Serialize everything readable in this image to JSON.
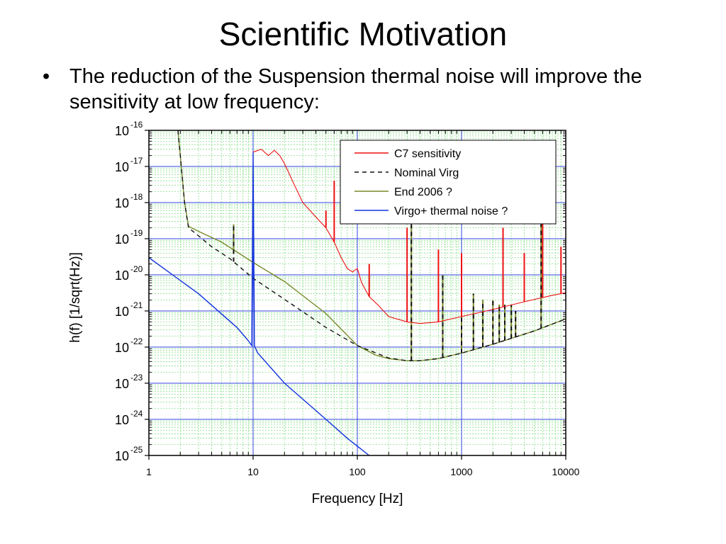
{
  "slide": {
    "title": "Scientific Motivation",
    "bullet_glyph": "•",
    "bullet_text": "The reduction of the Suspension thermal noise will improve the sensitivity at low frequency:"
  },
  "chart_data": {
    "type": "line",
    "xscale": "log",
    "yscale": "log",
    "xlim": [
      1,
      10000
    ],
    "ylim": [
      1e-25,
      1e-16
    ],
    "xlabel": "Frequency [Hz]",
    "ylabel": "h(f) [1/sqrt(Hz)]",
    "xticks": [
      "1",
      "10",
      "100",
      "1000",
      "10000"
    ],
    "yticks": [
      {
        "base": "10",
        "exp": "-16"
      },
      {
        "base": "10",
        "exp": "-17"
      },
      {
        "base": "10",
        "exp": "-18"
      },
      {
        "base": "10",
        "exp": "-19"
      },
      {
        "base": "10",
        "exp": "-20"
      },
      {
        "base": "10",
        "exp": "-21"
      },
      {
        "base": "10",
        "exp": "-22"
      },
      {
        "base": "10",
        "exp": "-23"
      },
      {
        "base": "10",
        "exp": "-24"
      },
      {
        "base": "10",
        "exp": "-25"
      }
    ],
    "grid": true,
    "legend_position": "top-right",
    "colors": {
      "major_grid": "#3344dd",
      "minor_grid": "#88dd88"
    },
    "series": [
      {
        "name": "C7 sensitivity",
        "color": "#ee1111",
        "style": "solid",
        "points": [
          [
            10,
            2.5e-17
          ],
          [
            12,
            3e-17
          ],
          [
            14,
            2e-17
          ],
          [
            16,
            2.8e-17
          ],
          [
            18,
            2e-17
          ],
          [
            20,
            1.2e-17
          ],
          [
            25,
            3e-18
          ],
          [
            30,
            1e-18
          ],
          [
            40,
            4e-19
          ],
          [
            50,
            2e-19
          ],
          [
            60,
            8e-20
          ],
          [
            70,
            3e-20
          ],
          [
            80,
            1.5e-20
          ],
          [
            90,
            1.2e-20
          ],
          [
            100,
            1.5e-20
          ],
          [
            110,
            6e-21
          ],
          [
            130,
            2.5e-21
          ],
          [
            160,
            1.4e-21
          ],
          [
            200,
            7e-22
          ],
          [
            300,
            5e-22
          ],
          [
            400,
            4.5e-22
          ],
          [
            600,
            5e-22
          ],
          [
            1000,
            7e-22
          ],
          [
            2000,
            1.1e-21
          ],
          [
            4000,
            1.8e-21
          ],
          [
            7000,
            2.6e-21
          ],
          [
            10000,
            3.2e-21
          ]
        ],
        "lines": [
          [
            50,
            6e-19
          ],
          [
            60,
            4e-18
          ],
          [
            130,
            2e-20
          ],
          [
            300,
            2e-19
          ],
          [
            600,
            5e-20
          ],
          [
            1000,
            4e-20
          ],
          [
            2500,
            2e-19
          ],
          [
            4000,
            4e-20
          ],
          [
            6000,
            3e-19
          ],
          [
            9000,
            6e-20
          ]
        ]
      },
      {
        "name": "Nominal Virg",
        "color": "#111111",
        "style": "dashed",
        "points": [
          [
            1.9,
            1e-16
          ],
          [
            2,
            2e-17
          ],
          [
            2.2,
            1e-18
          ],
          [
            2.4,
            2e-19
          ],
          [
            3,
            1.2e-19
          ],
          [
            4,
            6e-20
          ],
          [
            6,
            2.8e-20
          ],
          [
            10,
            8e-21
          ],
          [
            20,
            2.1e-21
          ],
          [
            50,
            3.5e-22
          ],
          [
            100,
            1.1e-22
          ],
          [
            200,
            5e-23
          ],
          [
            300,
            4.2e-23
          ],
          [
            400,
            4.2e-23
          ],
          [
            600,
            4.8e-23
          ],
          [
            1000,
            6.8e-23
          ],
          [
            2000,
            1.2e-22
          ],
          [
            5000,
            2.8e-22
          ],
          [
            10000,
            6e-22
          ]
        ],
        "lines": [
          [
            6.5,
            2.5e-19
          ],
          [
            330,
            2.5e-19
          ],
          [
            660,
            1e-20
          ],
          [
            1000,
            8e-21
          ],
          [
            1300,
            3e-21
          ],
          [
            1600,
            2e-21
          ],
          [
            2000,
            2e-21
          ],
          [
            2300,
            1.5e-21
          ],
          [
            2600,
            1.5e-21
          ],
          [
            3000,
            1.5e-21
          ],
          [
            3300,
            1e-21
          ],
          [
            5800,
            5e-19
          ]
        ]
      },
      {
        "name": "End 2006 ?",
        "color": "#7a8a2a",
        "style": "solid",
        "points": [
          [
            1.9,
            1e-16
          ],
          [
            2,
            2e-17
          ],
          [
            2.2,
            1e-18
          ],
          [
            2.4,
            2.2e-19
          ],
          [
            3,
            1.6e-19
          ],
          [
            5,
            8e-20
          ],
          [
            10,
            2.2e-20
          ],
          [
            20,
            6.5e-21
          ],
          [
            50,
            8.5e-22
          ],
          [
            100,
            1.1e-22
          ],
          [
            150,
            6e-23
          ],
          [
            200,
            4.8e-23
          ],
          [
            300,
            4.2e-23
          ],
          [
            400,
            4.2e-23
          ],
          [
            600,
            4.8e-23
          ],
          [
            1000,
            6.8e-23
          ],
          [
            2000,
            1.2e-22
          ],
          [
            5000,
            2.8e-22
          ],
          [
            10000,
            6e-22
          ]
        ],
        "lines": [
          [
            6.5,
            2.5e-19
          ],
          [
            330,
            2.5e-19
          ],
          [
            660,
            1e-20
          ],
          [
            1000,
            8e-21
          ],
          [
            1300,
            3e-21
          ],
          [
            1600,
            2e-21
          ],
          [
            2000,
            2e-21
          ],
          [
            2300,
            1.5e-21
          ],
          [
            2600,
            1.5e-21
          ],
          [
            3000,
            1.5e-21
          ],
          [
            3300,
            1e-21
          ],
          [
            5800,
            5e-19
          ]
        ]
      },
      {
        "name": "Virgo+ thermal noise ?",
        "color": "#1133dd",
        "style": "solid",
        "points": [
          [
            1,
            3e-20
          ],
          [
            3,
            3e-21
          ],
          [
            7,
            3.5e-22
          ],
          [
            9,
            1.5e-22
          ],
          [
            9.7,
            1.1e-22
          ],
          [
            10,
            2.5e-17
          ],
          [
            10.3,
            1.1e-22
          ],
          [
            11,
            7e-23
          ],
          [
            20,
            1e-23
          ],
          [
            50,
            1e-24
          ],
          [
            80,
            3e-25
          ],
          [
            130,
            1e-25
          ]
        ],
        "lines": []
      }
    ]
  }
}
